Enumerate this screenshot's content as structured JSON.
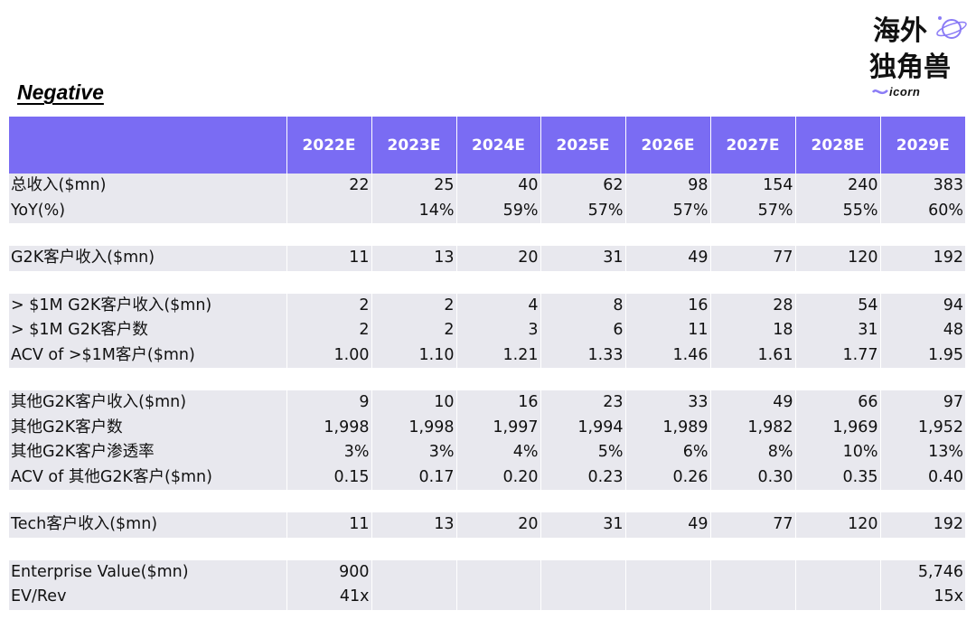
{
  "title": "Negative",
  "logo": {
    "cn_text": "海外独角兽",
    "en_text": "icorn"
  },
  "columns": [
    "2022E",
    "2023E",
    "2024E",
    "2025E",
    "2026E",
    "2027E",
    "2028E",
    "2029E"
  ],
  "sections": [
    {
      "rows": [
        {
          "label": "总收入($mn)",
          "values": [
            "22",
            "25",
            "40",
            "62",
            "98",
            "154",
            "240",
            "383"
          ]
        },
        {
          "label": "YoY(%)",
          "values": [
            "",
            "14%",
            "59%",
            "57%",
            "57%",
            "57%",
            "55%",
            "60%"
          ]
        }
      ]
    },
    {
      "rows": [
        {
          "label": "G2K客户收入($mn)",
          "values": [
            "11",
            "13",
            "20",
            "31",
            "49",
            "77",
            "120",
            "192"
          ]
        }
      ]
    },
    {
      "rows": [
        {
          "label": "> $1M G2K客户收入($mn)",
          "values": [
            "2",
            "2",
            "4",
            "8",
            "16",
            "28",
            "54",
            "94"
          ]
        },
        {
          "label": "> $1M G2K客户数",
          "values": [
            "2",
            "2",
            "3",
            "6",
            "11",
            "18",
            "31",
            "48"
          ]
        },
        {
          "label": "ACV of >$1M客户($mn)",
          "values": [
            "1.00",
            "1.10",
            "1.21",
            "1.33",
            "1.46",
            "1.61",
            "1.77",
            "1.95"
          ]
        }
      ]
    },
    {
      "rows": [
        {
          "label": "其他G2K客户收入($mn)",
          "values": [
            "9",
            "10",
            "16",
            "23",
            "33",
            "49",
            "66",
            "97"
          ]
        },
        {
          "label": "其他G2K客户数",
          "values": [
            "1,998",
            "1,998",
            "1,997",
            "1,994",
            "1,989",
            "1,982",
            "1,969",
            "1,952"
          ]
        },
        {
          "label": "其他G2K客户渗透率",
          "values": [
            "3%",
            "3%",
            "4%",
            "5%",
            "6%",
            "8%",
            "10%",
            "13%"
          ]
        },
        {
          "label": "ACV of 其他G2K客户($mn)",
          "values": [
            "0.15",
            "0.17",
            "0.20",
            "0.23",
            "0.26",
            "0.30",
            "0.35",
            "0.40"
          ]
        }
      ]
    },
    {
      "rows": [
        {
          "label": "Tech客户收入($mn)",
          "values": [
            "11",
            "13",
            "20",
            "31",
            "49",
            "77",
            "120",
            "192"
          ]
        }
      ]
    },
    {
      "rows": [
        {
          "label": "Enterprise Value($mn)",
          "values": [
            "900",
            "",
            "",
            "",
            "",
            "",
            "",
            "5,746"
          ]
        },
        {
          "label": "EV/Rev",
          "values": [
            "41x",
            "",
            "",
            "",
            "",
            "",
            "",
            "15x"
          ]
        }
      ]
    }
  ]
}
